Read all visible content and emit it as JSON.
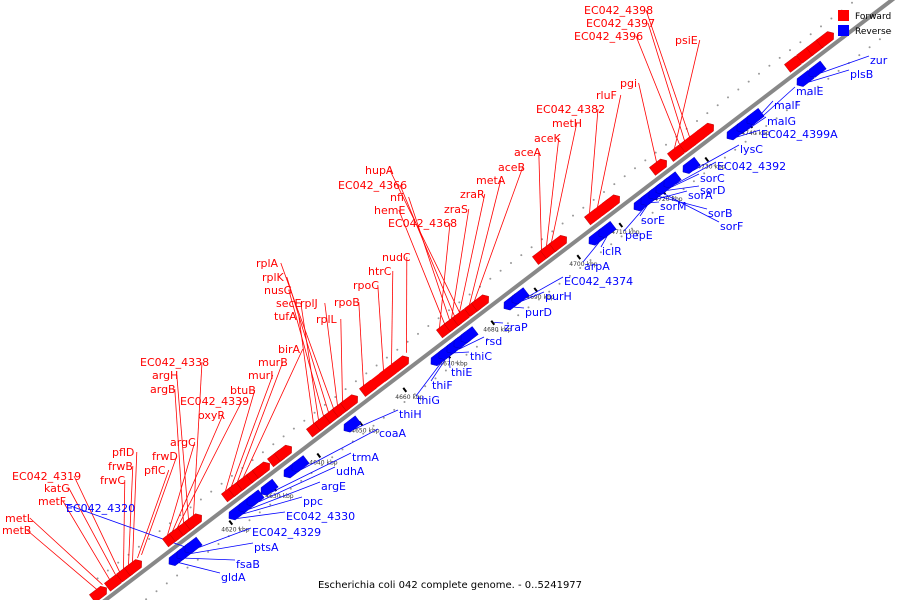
{
  "caption": "Escherichia coli 042 complete genome. - 0..5241977",
  "legend": {
    "forward": "Forward",
    "reverse": "Reverse"
  },
  "colors": {
    "forward": "#ff0000",
    "reverse": "#0000ff",
    "backbone": "#888888",
    "tick": "#000000"
  },
  "ticks": [
    "4620 kbp",
    "4630 kbp",
    "4640 kbp",
    "4650 kbp",
    "4660 kbp",
    "4670 kbp",
    "4680 kbp",
    "4690 kbp",
    "4700 kbp",
    "4710 kbp",
    "4720 kbp",
    "4730 kbp",
    "4740 kbp"
  ],
  "forward_genes": [
    "metB",
    "metL",
    "metF",
    "katG",
    "EC042_4319",
    "frwC",
    "frwB",
    "pflD",
    "pflC",
    "frwD",
    "argC",
    "oxyR",
    "EC042_4339",
    "argB",
    "argH",
    "EC042_4338",
    "btuB",
    "murI",
    "murB",
    "birA",
    "tufA",
    "secE",
    "nusG",
    "rplK",
    "rplA",
    "rplJ",
    "rplL",
    "rpoB",
    "rpoC",
    "htrC",
    "nudC",
    "EC042_4368",
    "hemE",
    "nfi",
    "EC042_4366",
    "hupA",
    "zraS",
    "zraR",
    "metA",
    "aceB",
    "aceA",
    "aceK",
    "metH",
    "EC042_4382",
    "rluF",
    "pgi",
    "psiE",
    "EC042_4396",
    "EC042_4397",
    "EC042_4398"
  ],
  "reverse_genes": [
    "gldA",
    "fsaB",
    "ptsA",
    "EC042_4320",
    "EC042_4329",
    "EC042_4330",
    "ppc",
    "argE",
    "udhA",
    "trmA",
    "coaA",
    "thiH",
    "thiG",
    "thiF",
    "thiE",
    "thiC",
    "rsd",
    "zraP",
    "purD",
    "purH",
    "EC042_4374",
    "arpA",
    "iclR",
    "pepE",
    "sorE",
    "sorM",
    "sorA",
    "sorB",
    "sorF",
    "sorD",
    "sorC",
    "EC042_4392",
    "lysC",
    "EC042_4399A",
    "malG",
    "malF",
    "malE",
    "plsB",
    "zur"
  ]
}
